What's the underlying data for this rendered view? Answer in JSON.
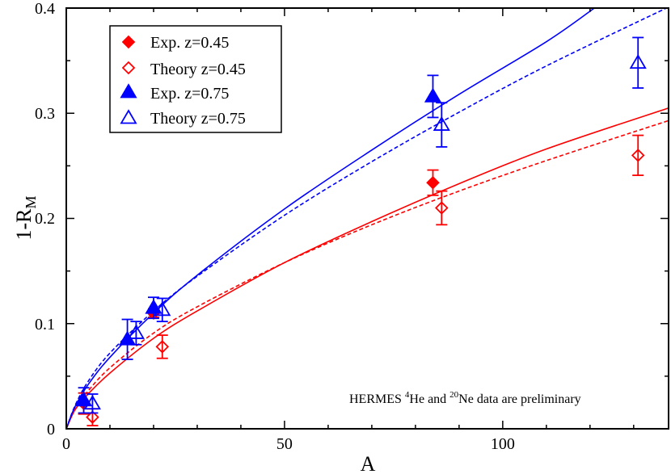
{
  "chart_data": {
    "type": "scatter",
    "title": "",
    "xlabel": "A",
    "ylabel_main": "1-R",
    "ylabel_sub": "M",
    "xlim": [
      0,
      138
    ],
    "ylim": [
      0,
      0.4
    ],
    "x_ticks": [
      0,
      50,
      100
    ],
    "x_tick_labels": [
      "0",
      "50",
      "100"
    ],
    "y_ticks": [
      0,
      0.1,
      0.2,
      0.3,
      0.4
    ],
    "y_tick_labels": [
      "0",
      "0.1",
      "0.2",
      "0.3",
      "0.4"
    ],
    "grid": false,
    "legend_position": "top-left",
    "series": [
      {
        "name": "Exp. z=0.45",
        "color": "#ff0000",
        "marker": "diamond",
        "filled": true,
        "points": [
          {
            "x": 4,
            "y": 0.024,
            "err": 0.01
          },
          {
            "x": 20,
            "y": 0.11,
            "err": 0.004
          },
          {
            "x": 84,
            "y": 0.234,
            "err": 0.012
          }
        ]
      },
      {
        "name": "Theory z=0.45",
        "color": "#ff0000",
        "marker": "diamond",
        "filled": false,
        "points": [
          {
            "x": 6,
            "y": 0.011,
            "err": 0.008
          },
          {
            "x": 22,
            "y": 0.078,
            "err": 0.011
          },
          {
            "x": 86,
            "y": 0.21,
            "err": 0.016
          },
          {
            "x": 131,
            "y": 0.26,
            "err": 0.019
          }
        ]
      },
      {
        "name": "Exp. z=0.75",
        "color": "#0000ff",
        "marker": "triangle",
        "filled": true,
        "points": [
          {
            "x": 4,
            "y": 0.027,
            "err": 0.012
          },
          {
            "x": 14,
            "y": 0.085,
            "err": 0.019
          },
          {
            "x": 20,
            "y": 0.115,
            "err": 0.01
          },
          {
            "x": 84,
            "y": 0.316,
            "err": 0.02
          }
        ]
      },
      {
        "name": "Theory z=0.75",
        "color": "#0000ff",
        "marker": "triangle",
        "filled": false,
        "points": [
          {
            "x": 6,
            "y": 0.024,
            "err": 0.009
          },
          {
            "x": 16,
            "y": 0.091,
            "err": 0.011
          },
          {
            "x": 22,
            "y": 0.113,
            "err": 0.011
          },
          {
            "x": 86,
            "y": 0.289,
            "err": 0.021
          },
          {
            "x": 131,
            "y": 0.348,
            "err": 0.024
          }
        ]
      }
    ],
    "curves": [
      {
        "name": "z=0.45 solid fit",
        "color": "#ff0000",
        "style": "solid",
        "x": [
          0,
          2,
          5,
          10,
          20,
          30,
          50,
          70,
          90,
          110,
          138
        ],
        "y": [
          0,
          0.018,
          0.033,
          0.053,
          0.086,
          0.112,
          0.158,
          0.197,
          0.233,
          0.266,
          0.305
        ]
      },
      {
        "name": "z=0.45 dashed fit",
        "color": "#ff0000",
        "style": "dashed",
        "x": [
          0,
          2,
          5,
          10,
          20,
          30,
          50,
          70,
          90,
          110,
          138
        ],
        "y": [
          0,
          0.019,
          0.036,
          0.058,
          0.091,
          0.116,
          0.158,
          0.194,
          0.226,
          0.255,
          0.293
        ]
      },
      {
        "name": "z=0.75 solid fit",
        "color": "#0000ff",
        "style": "solid",
        "x": [
          0,
          2,
          5,
          10,
          20,
          30,
          50,
          70,
          90,
          110,
          121
        ],
        "y": [
          0,
          0.021,
          0.042,
          0.068,
          0.11,
          0.146,
          0.209,
          0.265,
          0.318,
          0.368,
          0.4
        ]
      },
      {
        "name": "z=0.75 dashed fit",
        "color": "#0000ff",
        "style": "dashed",
        "x": [
          0,
          2,
          5,
          10,
          20,
          30,
          50,
          70,
          90,
          110,
          138
        ],
        "y": [
          0,
          0.022,
          0.045,
          0.072,
          0.112,
          0.145,
          0.203,
          0.254,
          0.301,
          0.345,
          0.401
        ]
      }
    ],
    "annotation_parts": [
      "HERMES ",
      "4",
      "He and ",
      "20",
      "Ne data are preliminary"
    ]
  }
}
